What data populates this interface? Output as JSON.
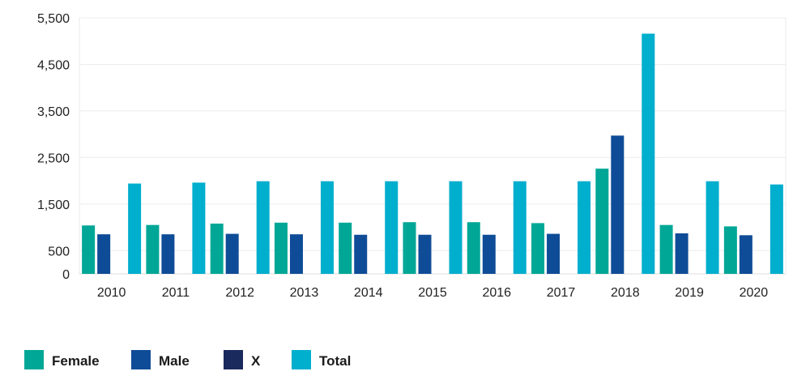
{
  "chart_data": {
    "type": "bar",
    "categories": [
      "2010",
      "2011",
      "2012",
      "2013",
      "2014",
      "2015",
      "2016",
      "2017",
      "2018",
      "2019",
      "2020"
    ],
    "series": [
      {
        "name": "Female",
        "color": "#00a796",
        "values": [
          1040,
          1050,
          1080,
          1100,
          1100,
          1110,
          1110,
          1090,
          2260,
          1050,
          1020
        ]
      },
      {
        "name": "Male",
        "color": "#0f4c97",
        "values": [
          850,
          850,
          860,
          850,
          840,
          840,
          840,
          860,
          2970,
          870,
          830
        ]
      },
      {
        "name": "X",
        "color": "#1b2a5c",
        "values": [
          0,
          0,
          0,
          0,
          0,
          0,
          0,
          0,
          0,
          0,
          0
        ]
      },
      {
        "name": "Total",
        "color": "#00aecd",
        "values": [
          1940,
          1960,
          1990,
          1990,
          1990,
          1990,
          1990,
          1990,
          5160,
          1990,
          1920
        ]
      }
    ],
    "yticks": [
      0,
      500,
      1500,
      2500,
      3500,
      4500,
      5500
    ],
    "ytick_labels": [
      "0",
      "500",
      "1,500",
      "2,500",
      "3,500",
      "4,500",
      "5,500"
    ],
    "ylim": [
      0,
      5500
    ],
    "grid": true,
    "legend_position": "bottom-left"
  }
}
